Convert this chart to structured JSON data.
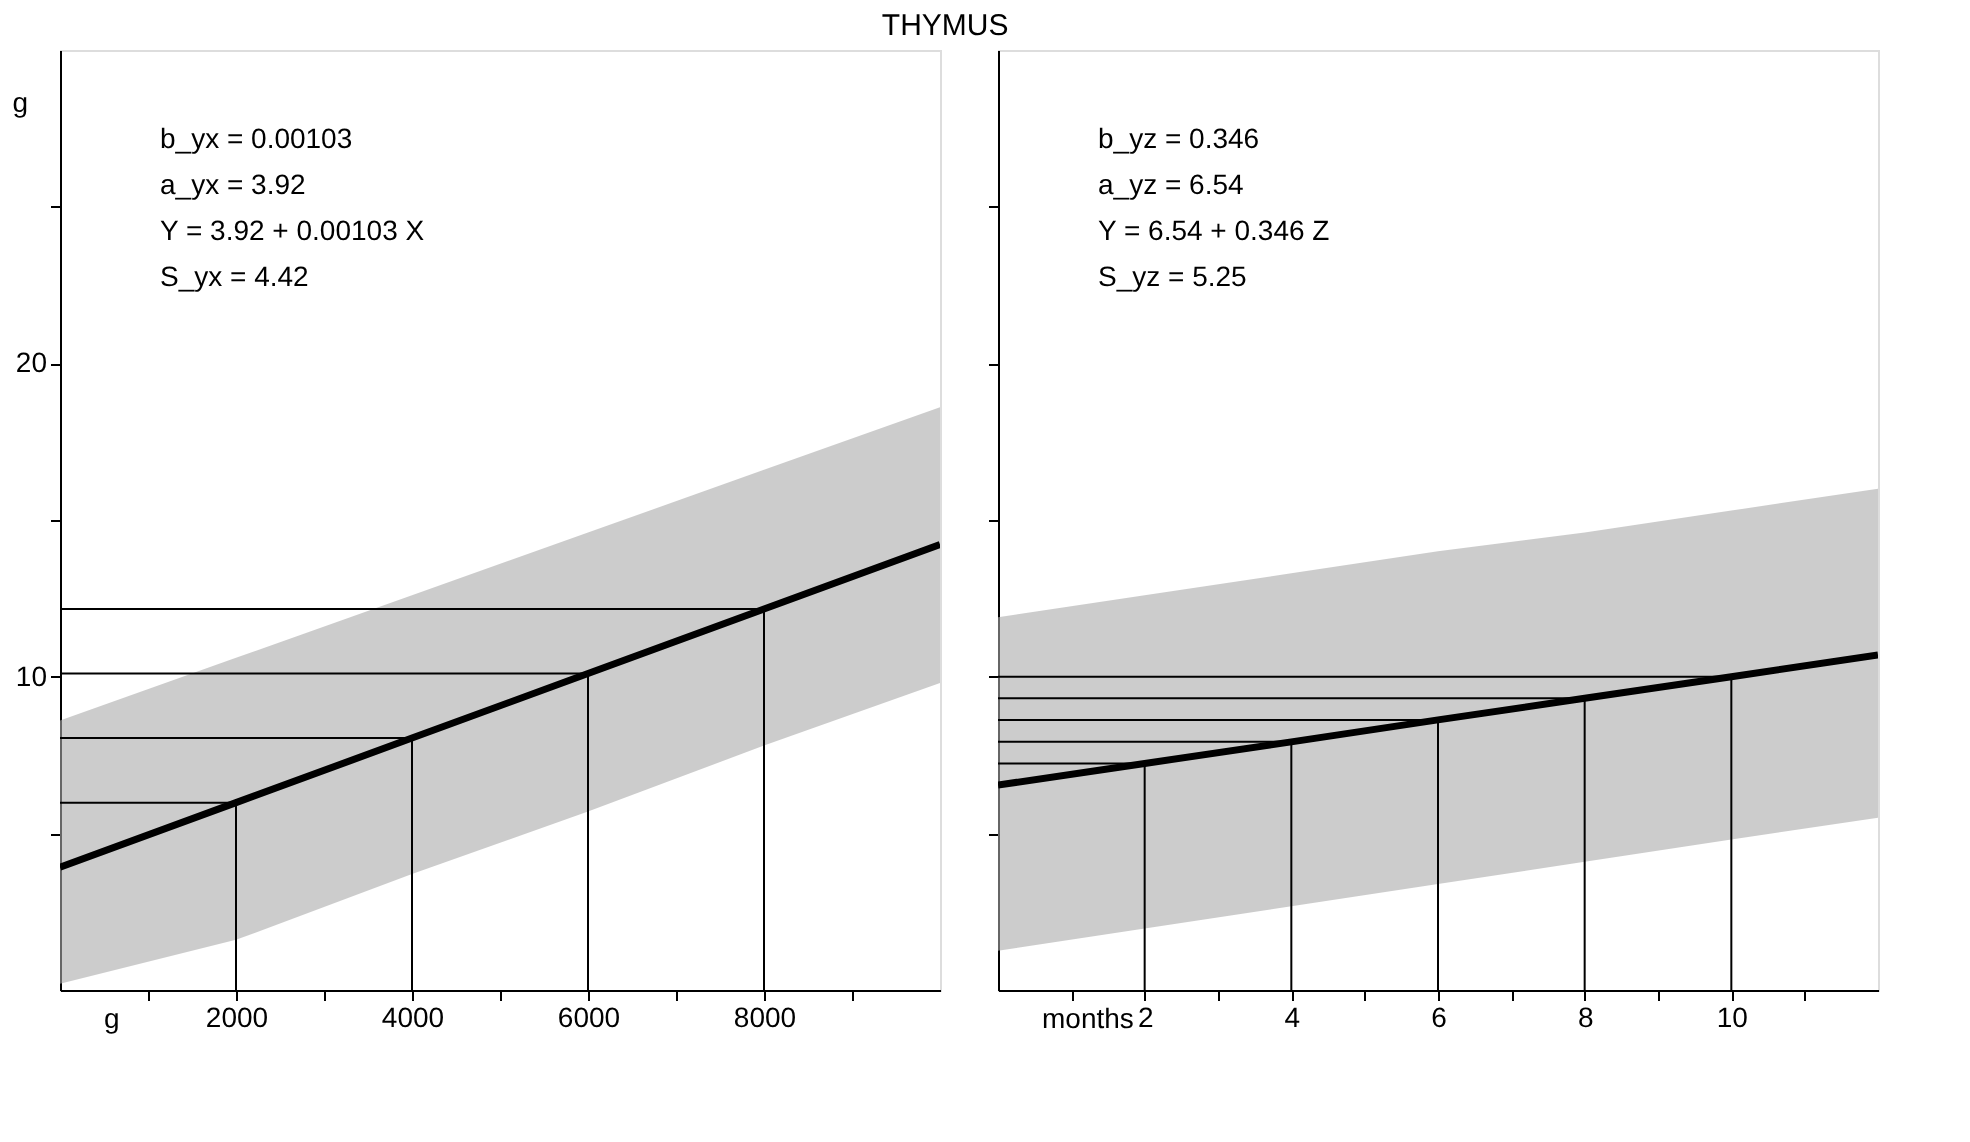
{
  "chart_data": [
    {
      "type": "line",
      "title": "THYMUS",
      "xlabel": "g",
      "ylabel": "g",
      "xlim": [
        0,
        10000
      ],
      "xticks": [
        {
          "value": 1000,
          "label": null
        },
        2000,
        {
          "value": 3000,
          "label": null
        },
        4000,
        {
          "value": 5000,
          "label": null
        },
        6000,
        {
          "value": 7000,
          "label": null
        },
        8000,
        {
          "value": 9000,
          "label": null
        }
      ],
      "ylim": [
        0,
        30
      ],
      "yticks": [
        {
          "value": 5,
          "label": null
        },
        10,
        {
          "value": 15,
          "label": null
        },
        20,
        {
          "value": 25,
          "label": null
        }
      ],
      "grid": false,
      "annotations": [
        "b_yx = 0.00103",
        "a_yx = 3.92",
        "Y    = 3.92 + 0.00103 X",
        "S_yx = 4.42"
      ],
      "series": [
        {
          "color": "#000000",
          "x": [
            0,
            2000,
            4000,
            6000,
            8000,
            10000
          ],
          "values": [
            3.92,
            5.98,
            8.04,
            10.1,
            12.16,
            14.22
          ],
          "lower": [
            0.2,
            1.6,
            3.7,
            5.7,
            7.8,
            9.8
          ],
          "upper": [
            8.6,
            10.6,
            12.6,
            14.6,
            16.6,
            18.6
          ]
        },
        {
          "color": "#000000",
          "x": [
            0,
            2000,
            2000
          ],
          "values": [
            5.98,
            5.98,
            0
          ]
        },
        {
          "color": "#000000",
          "x": [
            0,
            4000,
            4000
          ],
          "values": [
            8.04,
            8.04,
            0
          ]
        },
        {
          "color": "#000000",
          "x": [
            0,
            6000,
            6000
          ],
          "values": [
            10.1,
            10.1,
            0
          ]
        },
        {
          "color": "#000000",
          "x": [
            0,
            8000,
            8000
          ],
          "values": [
            12.16,
            12.16,
            0
          ]
        }
      ]
    },
    {
      "type": "line",
      "xlabel": "months",
      "tick_labels": "x",
      "xlim": [
        0,
        12
      ],
      "xticks": [
        {
          "value": 1,
          "label": null
        },
        2,
        {
          "value": 3,
          "label": null
        },
        4,
        {
          "value": 5,
          "label": null
        },
        6,
        {
          "value": 7,
          "label": null
        },
        8,
        {
          "value": 9,
          "label": null
        },
        10,
        {
          "value": 11,
          "label": null
        }
      ],
      "ylim": [
        0,
        30
      ],
      "yticks": [
        {
          "value": 5,
          "label": null
        },
        {
          "value": 10,
          "label": null
        },
        {
          "value": 15,
          "label": null
        },
        {
          "value": 20,
          "label": null
        },
        {
          "value": 25,
          "label": null
        }
      ],
      "grid": false,
      "annotations": [
        "b_yz = 0.346",
        "a_yz = 6.54",
        "Y    = 6.54 + 0.346 Z",
        "S_yz = 5.25"
      ],
      "series": [
        {
          "color": "#000000",
          "x": [
            0,
            2,
            4,
            6,
            8,
            10,
            12
          ],
          "values": [
            6.54,
            7.23,
            7.92,
            8.62,
            9.31,
            10.0,
            10.69
          ],
          "lower": [
            1.25,
            1.96,
            2.67,
            3.38,
            4.09,
            4.8,
            5.5
          ],
          "upper": [
            11.9,
            12.6,
            13.3,
            14.0,
            14.6,
            15.3,
            16.0
          ]
        },
        {
          "color": "#000000",
          "x": [
            0,
            2,
            2
          ],
          "values": [
            7.23,
            7.23,
            0
          ]
        },
        {
          "color": "#000000",
          "x": [
            0,
            4,
            4
          ],
          "values": [
            7.92,
            7.92,
            0
          ]
        },
        {
          "color": "#000000",
          "x": [
            0,
            6,
            6
          ],
          "values": [
            8.62,
            8.62,
            0
          ]
        },
        {
          "color": "#000000",
          "x": [
            0,
            8,
            8
          ],
          "values": [
            9.31,
            9.31,
            0
          ]
        },
        {
          "color": "#000000",
          "x": [
            0,
            10,
            10
          ],
          "values": [
            10.0,
            10.0,
            0
          ]
        }
      ]
    }
  ]
}
